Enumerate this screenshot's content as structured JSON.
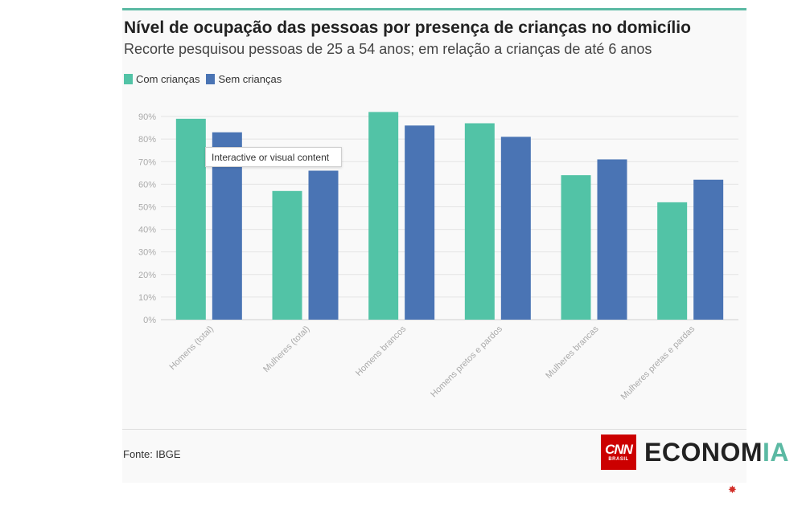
{
  "header": {
    "title": "Nível de ocupação das pessoas por presença de crianças no domicílio",
    "subtitle": "Recorte pesquisou pessoas de 25 a 54 anos; em relação a crianças de até 6 anos"
  },
  "legend": {
    "items": [
      {
        "label": "Com crianças",
        "color": "#52c3a6"
      },
      {
        "label": "Sem crianças",
        "color": "#4a74b4"
      }
    ]
  },
  "tooltip": {
    "text": "Interactive or visual content"
  },
  "footer": {
    "source": "Fonte: IBGE",
    "brand_box": "CNN",
    "brand_box_sub": "BRASIL",
    "brand_main": "ECONOM",
    "brand_accent": "IA"
  },
  "chart_data": {
    "type": "bar",
    "categories": [
      "Homens (total)",
      "Mulheres (total)",
      "Homens brancos",
      "Homens pretos e pardos",
      "Mulheres brancas",
      "Mulheres pretas e pardas"
    ],
    "series": [
      {
        "name": "Com crianças",
        "color": "#52c3a6",
        "values": [
          89,
          57,
          92,
          87,
          64,
          52
        ]
      },
      {
        "name": "Sem crianças",
        "color": "#4a74b4",
        "values": [
          83,
          66,
          86,
          81,
          71,
          62
        ]
      }
    ],
    "yticks": [
      "0%",
      "10%",
      "20%",
      "30%",
      "40%",
      "50%",
      "60%",
      "70%",
      "80%",
      "90%"
    ],
    "ylim": [
      0,
      95
    ],
    "grid": true,
    "legend_position": "top-left"
  }
}
